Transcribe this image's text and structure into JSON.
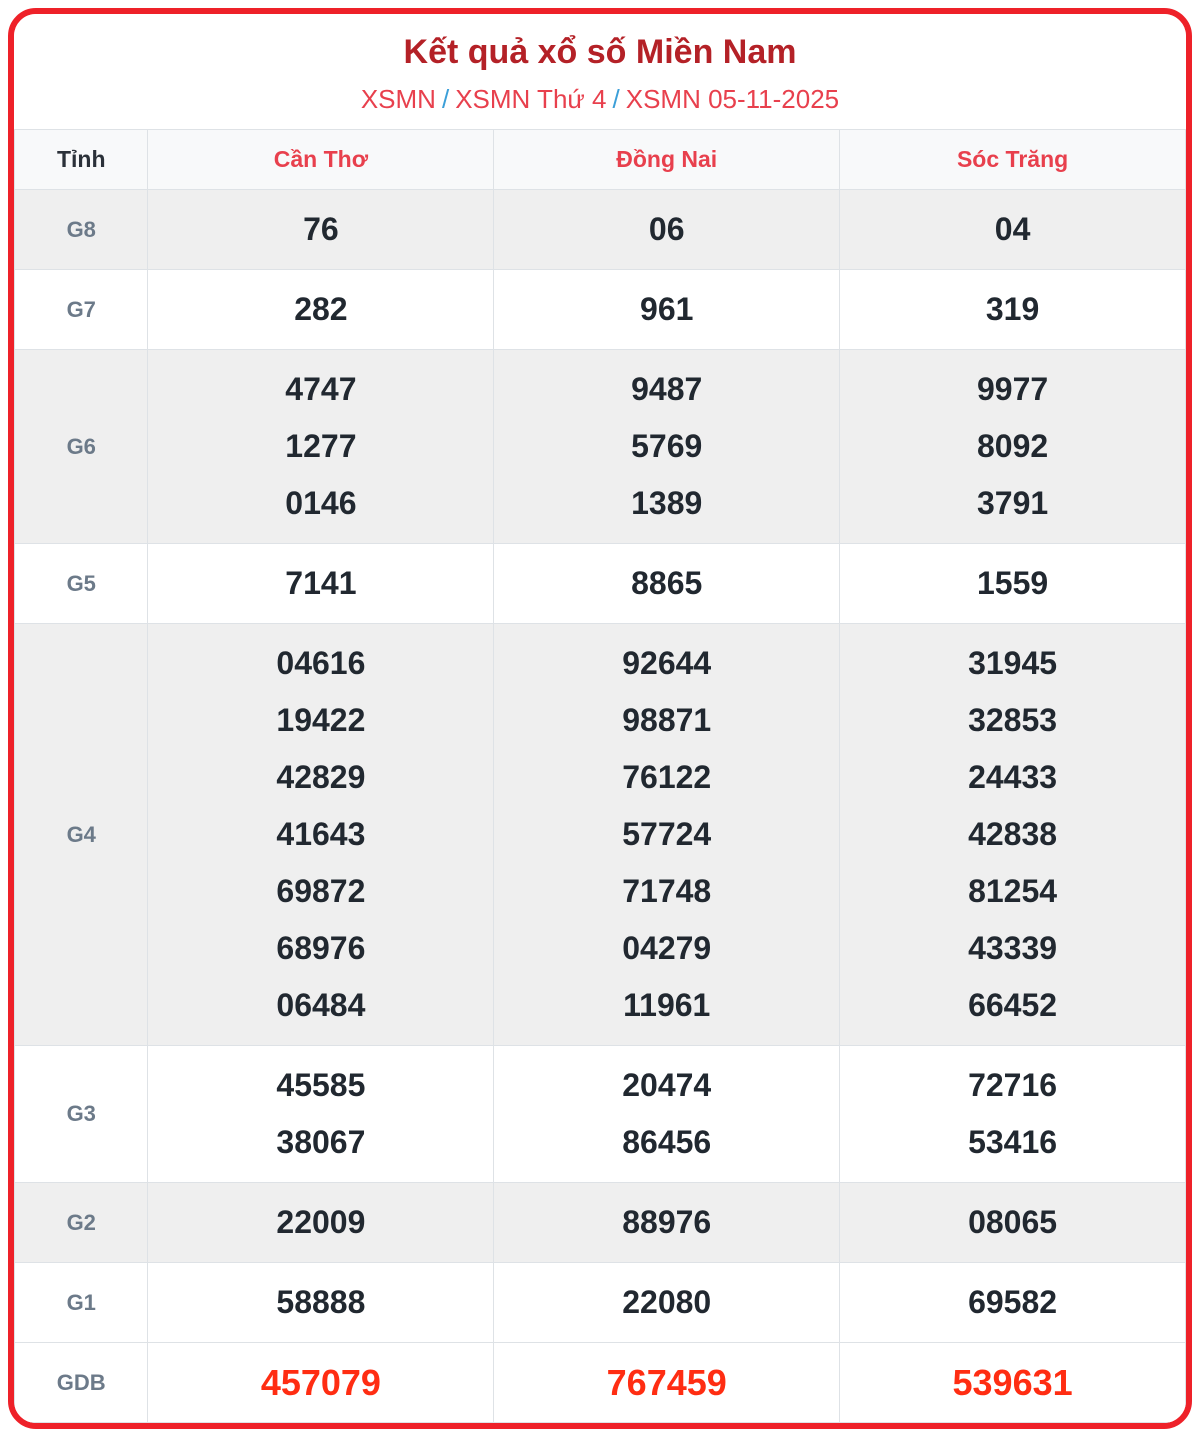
{
  "page_title": "Kết quả xổ số Miền Nam",
  "breadcrumb": {
    "separator": "/",
    "parts": [
      "XSMN",
      "XSMN Thứ 4",
      "XSMN 05-11-2025"
    ]
  },
  "table": {
    "corner_header": "Tỉnh",
    "province_headers": [
      "Cần Thơ",
      "Đồng Nai",
      "Sóc Trăng"
    ],
    "rows": [
      {
        "label": "G8",
        "highlight": false,
        "cells": [
          [
            "76"
          ],
          [
            "06"
          ],
          [
            "04"
          ]
        ]
      },
      {
        "label": "G7",
        "highlight": false,
        "cells": [
          [
            "282"
          ],
          [
            "961"
          ],
          [
            "319"
          ]
        ]
      },
      {
        "label": "G6",
        "highlight": false,
        "cells": [
          [
            "4747",
            "1277",
            "0146"
          ],
          [
            "9487",
            "5769",
            "1389"
          ],
          [
            "9977",
            "8092",
            "3791"
          ]
        ]
      },
      {
        "label": "G5",
        "highlight": false,
        "cells": [
          [
            "7141"
          ],
          [
            "8865"
          ],
          [
            "1559"
          ]
        ]
      },
      {
        "label": "G4",
        "highlight": false,
        "cells": [
          [
            "04616",
            "19422",
            "42829",
            "41643",
            "69872",
            "68976",
            "06484"
          ],
          [
            "92644",
            "98871",
            "76122",
            "57724",
            "71748",
            "04279",
            "11961"
          ],
          [
            "31945",
            "32853",
            "24433",
            "42838",
            "81254",
            "43339",
            "66452"
          ]
        ]
      },
      {
        "label": "G3",
        "highlight": false,
        "cells": [
          [
            "45585",
            "38067"
          ],
          [
            "20474",
            "86456"
          ],
          [
            "72716",
            "53416"
          ]
        ]
      },
      {
        "label": "G2",
        "highlight": false,
        "cells": [
          [
            "22009"
          ],
          [
            "88976"
          ],
          [
            "08065"
          ]
        ]
      },
      {
        "label": "G1",
        "highlight": false,
        "cells": [
          [
            "58888"
          ],
          [
            "22080"
          ],
          [
            "69582"
          ]
        ]
      },
      {
        "label": "GDB",
        "highlight": true,
        "cells": [
          [
            "457079"
          ],
          [
            "767459"
          ],
          [
            "539631"
          ]
        ]
      }
    ]
  },
  "colors": {
    "card_border": "#ee2129",
    "title_text": "#b42127",
    "breadcrumb_text": "#e8404d",
    "breadcrumb_separator": "#3b9fd8",
    "province_header_text": "#e8404d",
    "corner_header_text": "#2b3139",
    "row_label_text": "#6c7a89",
    "number_text": "#212830",
    "highlight_number_text": "#ff2d12",
    "shaded_row_bg": "#efefef",
    "header_row_bg": "#f8f9fa",
    "cell_border": "#dee2e6"
  }
}
